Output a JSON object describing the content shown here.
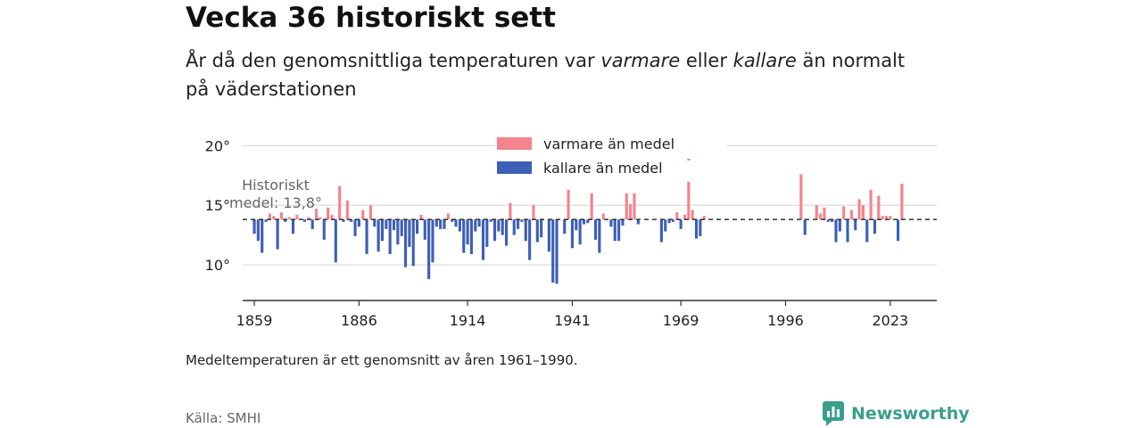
{
  "title": "Vecka 36 historiskt sett",
  "subtitle": {
    "part1": "År då den genomsnittliga temperaturen var ",
    "warm_word": "varmare",
    "part2": " eller ",
    "cold_word": "kallare",
    "part3": " än normalt på väderstationen"
  },
  "note": "Medeltemperaturen är ett genomsnitt av åren 1961–1990.",
  "source": "Källa: SMHI",
  "brand": {
    "name": "Newsworthy",
    "icon": "newsworthy-logo-icon"
  },
  "colors": {
    "warm": "#f4838e",
    "cold": "#3e5fb8",
    "brand": "#3a9e8c"
  },
  "chart_data": {
    "type": "bar",
    "baseline": 13.8,
    "baseline_label": [
      "Historiskt",
      "medel: 13,8°"
    ],
    "y_ticks": [
      {
        "value": 10,
        "label": "10°"
      },
      {
        "value": 15,
        "label": "15°"
      },
      {
        "value": 20,
        "label": "20°"
      }
    ],
    "x_ticks": [
      1859,
      1886,
      1914,
      1941,
      1969,
      1996,
      2023
    ],
    "x_range": [
      1856,
      2035
    ],
    "y_range": [
      7,
      21
    ],
    "legend": {
      "position": "top-center",
      "entries": [
        {
          "label": "varmare än medel",
          "key": "warm"
        },
        {
          "label": "kallare än medel",
          "key": "cold"
        }
      ]
    },
    "data": [
      [
        1859,
        12.6
      ],
      [
        1860,
        12.0
      ],
      [
        1861,
        11.0
      ],
      [
        1862,
        13.6
      ],
      [
        1863,
        14.3
      ],
      [
        1864,
        14.1
      ],
      [
        1865,
        11.3
      ],
      [
        1866,
        14.4
      ],
      [
        1867,
        13.6
      ],
      [
        1868,
        14.0
      ],
      [
        1869,
        12.6
      ],
      [
        1870,
        14.2
      ],
      [
        1871,
        13.8
      ],
      [
        1872,
        13.6
      ],
      [
        1873,
        14.0
      ],
      [
        1874,
        13.0
      ],
      [
        1875,
        14.7
      ],
      [
        1876,
        14.0
      ],
      [
        1877,
        12.1
      ],
      [
        1878,
        14.8
      ],
      [
        1879,
        14.2
      ],
      [
        1880,
        10.2
      ],
      [
        1881,
        16.6
      ],
      [
        1882,
        13.6
      ],
      [
        1883,
        15.4
      ],
      [
        1884,
        13.6
      ],
      [
        1885,
        12.4
      ],
      [
        1886,
        13.2
      ],
      [
        1887,
        14.6
      ],
      [
        1888,
        10.9
      ],
      [
        1889,
        15.0
      ],
      [
        1890,
        13.2
      ],
      [
        1891,
        11.1
      ],
      [
        1892,
        12.0
      ],
      [
        1893,
        13.0
      ],
      [
        1894,
        10.9
      ],
      [
        1895,
        12.9
      ],
      [
        1896,
        11.7
      ],
      [
        1897,
        12.4
      ],
      [
        1898,
        9.8
      ],
      [
        1899,
        11.5
      ],
      [
        1900,
        9.9
      ],
      [
        1901,
        12.6
      ],
      [
        1902,
        14.2
      ],
      [
        1903,
        12.1
      ],
      [
        1904,
        8.8
      ],
      [
        1905,
        10.2
      ],
      [
        1906,
        13.2
      ],
      [
        1907,
        13.0
      ],
      [
        1908,
        13.0
      ],
      [
        1909,
        14.3
      ],
      [
        1910,
        13.6
      ],
      [
        1911,
        13.2
      ],
      [
        1912,
        12.8
      ],
      [
        1913,
        11.0
      ],
      [
        1914,
        11.7
      ],
      [
        1915,
        10.9
      ],
      [
        1916,
        12.8
      ],
      [
        1917,
        13.2
      ],
      [
        1918,
        10.4
      ],
      [
        1919,
        11.5
      ],
      [
        1920,
        13.6
      ],
      [
        1921,
        12.0
      ],
      [
        1922,
        12.8
      ],
      [
        1923,
        12.5
      ],
      [
        1924,
        11.6
      ],
      [
        1925,
        15.2
      ],
      [
        1926,
        12.5
      ],
      [
        1927,
        13.0
      ],
      [
        1928,
        13.6
      ],
      [
        1929,
        12.0
      ],
      [
        1930,
        10.4
      ],
      [
        1931,
        15.0
      ],
      [
        1932,
        11.9
      ],
      [
        1933,
        12.3
      ],
      [
        1934,
        13.8
      ],
      [
        1935,
        11.1
      ],
      [
        1936,
        8.5
      ],
      [
        1937,
        8.4
      ],
      [
        1938,
        13.8
      ],
      [
        1939,
        12.6
      ],
      [
        1940,
        16.3
      ],
      [
        1941,
        11.4
      ],
      [
        1942,
        12.9
      ],
      [
        1943,
        11.7
      ],
      [
        1944,
        13.4
      ],
      [
        1945,
        13.5
      ],
      [
        1946,
        16.0
      ],
      [
        1947,
        12.1
      ],
      [
        1948,
        11.0
      ],
      [
        1949,
        14.3
      ],
      [
        1950,
        13.8
      ],
      [
        1951,
        13.2
      ],
      [
        1952,
        12.0
      ],
      [
        1953,
        12.0
      ],
      [
        1954,
        13.3
      ],
      [
        1955,
        16.0
      ],
      [
        1956,
        15.1
      ],
      [
        1957,
        16.0
      ],
      [
        1958,
        13.4
      ],
      [
        1964,
        11.9
      ],
      [
        1965,
        12.8
      ],
      [
        1966,
        13.5
      ],
      [
        1967,
        13.6
      ],
      [
        1968,
        14.4
      ],
      [
        1969,
        13.0
      ],
      [
        1970,
        14.2
      ],
      [
        1971,
        18.9
      ],
      [
        1972,
        14.6
      ],
      [
        1973,
        12.2
      ],
      [
        1974,
        12.4
      ],
      [
        1975,
        14.1
      ],
      [
        2000,
        17.6
      ],
      [
        2001,
        12.5
      ],
      [
        2002,
        13.8
      ],
      [
        2003,
        13.8
      ],
      [
        2004,
        15.0
      ],
      [
        2005,
        14.3
      ],
      [
        2006,
        14.8
      ],
      [
        2007,
        13.6
      ],
      [
        2008,
        13.6
      ],
      [
        2009,
        11.9
      ],
      [
        2010,
        12.8
      ],
      [
        2011,
        14.9
      ],
      [
        2012,
        11.9
      ],
      [
        2013,
        14.6
      ],
      [
        2014,
        12.9
      ],
      [
        2015,
        15.5
      ],
      [
        2016,
        15.0
      ],
      [
        2017,
        11.9
      ],
      [
        2018,
        16.3
      ],
      [
        2019,
        12.6
      ],
      [
        2020,
        15.8
      ],
      [
        2021,
        14.1
      ],
      [
        2022,
        14.1
      ],
      [
        2023,
        14.1
      ],
      [
        2024,
        13.8
      ],
      [
        2025,
        12.0
      ],
      [
        2026,
        16.8
      ]
    ]
  }
}
